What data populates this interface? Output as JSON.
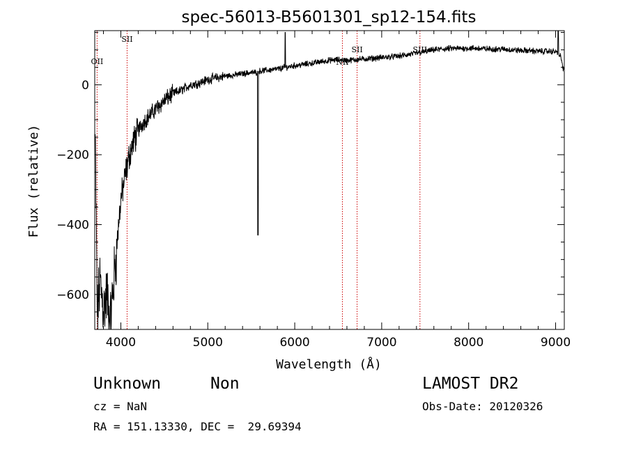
{
  "chart_data": {
    "type": "line",
    "title": "spec-56013-B5601301_sp12-154.fits",
    "xlabel": "Wavelength (Å)",
    "ylabel": "Flux (relative)",
    "xlim": [
      3700,
      9100
    ],
    "ylim": [
      -700,
      155
    ],
    "x_ticks": [
      4000,
      5000,
      6000,
      7000,
      8000,
      9000
    ],
    "y_ticks": [
      -600,
      -400,
      -200,
      0
    ],
    "grid": false,
    "line_color": "#000000",
    "marker_color": "#cc0000",
    "lines": [
      {
        "label": "OII",
        "wavelength": 3727
      },
      {
        "label": "SII",
        "wavelength": 4072
      },
      {
        "label": "NII",
        "wavelength": 6548
      },
      {
        "label": "SII",
        "wavelength": 6717
      },
      {
        "label": "SIII",
        "wavelength": 7440
      }
    ],
    "spectrum_anchors": [
      [
        3705,
        -150
      ],
      [
        3730,
        -660
      ],
      [
        3760,
        -560
      ],
      [
        3800,
        -640
      ],
      [
        3840,
        -600
      ],
      [
        3880,
        -680
      ],
      [
        3920,
        -560
      ],
      [
        3960,
        -440
      ],
      [
        4000,
        -330
      ],
      [
        4050,
        -260
      ],
      [
        4100,
        -200
      ],
      [
        4150,
        -160
      ],
      [
        4200,
        -130
      ],
      [
        4250,
        -110
      ],
      [
        4300,
        -95
      ],
      [
        4400,
        -70
      ],
      [
        4500,
        -45
      ],
      [
        4600,
        -25
      ],
      [
        4700,
        -15
      ],
      [
        4800,
        0
      ],
      [
        4900,
        5
      ],
      [
        5000,
        15
      ],
      [
        5100,
        20
      ],
      [
        5200,
        25
      ],
      [
        5300,
        28
      ],
      [
        5400,
        32
      ],
      [
        5500,
        35
      ],
      [
        5560,
        36
      ],
      [
        5600,
        40
      ],
      [
        5700,
        42
      ],
      [
        5800,
        45
      ],
      [
        5900,
        50
      ],
      [
        6000,
        55
      ],
      [
        6100,
        58
      ],
      [
        6200,
        62
      ],
      [
        6300,
        66
      ],
      [
        6400,
        70
      ],
      [
        6500,
        72
      ],
      [
        6600,
        70
      ],
      [
        6700,
        72
      ],
      [
        6800,
        74
      ],
      [
        6900,
        76
      ],
      [
        7000,
        78
      ],
      [
        7100,
        80
      ],
      [
        7200,
        82
      ],
      [
        7300,
        86
      ],
      [
        7400,
        90
      ],
      [
        7500,
        95
      ],
      [
        7600,
        100
      ],
      [
        7700,
        102
      ],
      [
        7800,
        104
      ],
      [
        7900,
        104
      ],
      [
        8000,
        105
      ],
      [
        8100,
        104
      ],
      [
        8200,
        103
      ],
      [
        8300,
        102
      ],
      [
        8400,
        102
      ],
      [
        8500,
        100
      ],
      [
        8600,
        98
      ],
      [
        8700,
        98
      ],
      [
        8800,
        96
      ],
      [
        8900,
        96
      ],
      [
        9000,
        95
      ],
      [
        9060,
        80
      ],
      [
        9100,
        30
      ]
    ],
    "spectrum_features": [
      {
        "x": 5577,
        "y": -430
      },
      {
        "x": 5890,
        "y": 150
      },
      {
        "x": 9030,
        "y": 170
      }
    ]
  },
  "info": {
    "object_class": "Unknown",
    "subclass": "Non",
    "survey": "LAMOST DR2",
    "redshift": "cz = NaN",
    "obs_date": "Obs-Date: 20120326",
    "coords": "RA = 151.13330, DEC =  29.69394"
  }
}
